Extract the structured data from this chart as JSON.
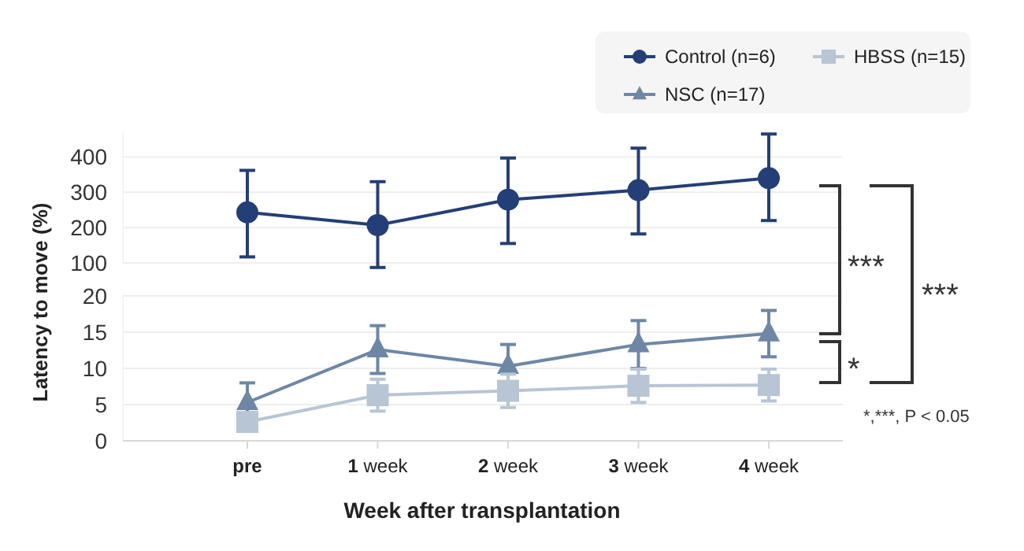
{
  "chart_data": [
    {
      "type": "line",
      "ylabel": "Latency to move (%)",
      "categories": [
        null,
        null,
        null,
        null,
        null
      ],
      "ylim": [
        100,
        470
      ],
      "yticks": [
        100,
        200,
        300,
        400
      ],
      "grid": "y",
      "tick_labels": "y",
      "legend": "top right",
      "series": [
        {
          "name": "Control (n=6)",
          "color": "#243f77",
          "marker": "circle",
          "values": [
            243,
            207,
            279,
            306,
            340
          ],
          "errors": [
            [
              117,
              362
            ],
            [
              87,
              330
            ],
            [
              155,
              397
            ],
            [
              182,
              425
            ],
            [
              220,
              465
            ]
          ]
        }
      ]
    },
    {
      "type": "line",
      "xlabel": "Week after transplantation",
      "categories": [
        "pre",
        "1 week",
        "2 week",
        "3 week",
        "4 week"
      ],
      "ylim": [
        0,
        20
      ],
      "yticks": [
        0,
        5,
        10,
        15,
        20
      ],
      "grid": "y",
      "legend": "top right",
      "series": [
        {
          "name": "NSC (n=17)",
          "color": "#6d87a5",
          "marker": "triangle",
          "values": [
            5.3,
            12.6,
            10.3,
            13.3,
            14.8
          ],
          "errors": [
            2.7,
            3.3,
            3,
            3.3,
            3.2
          ]
        },
        {
          "name": "HBSS (n=15)",
          "color": "#b7c5d4",
          "marker": "square",
          "values": [
            2.6,
            6.3,
            6.9,
            7.6,
            7.7
          ],
          "errors": [
            null,
            2.2,
            2.3,
            2.3,
            2.2
          ]
        }
      ],
      "annotations": [
        "***",
        "*",
        "***",
        "*,***, P < 0.05"
      ]
    }
  ]
}
